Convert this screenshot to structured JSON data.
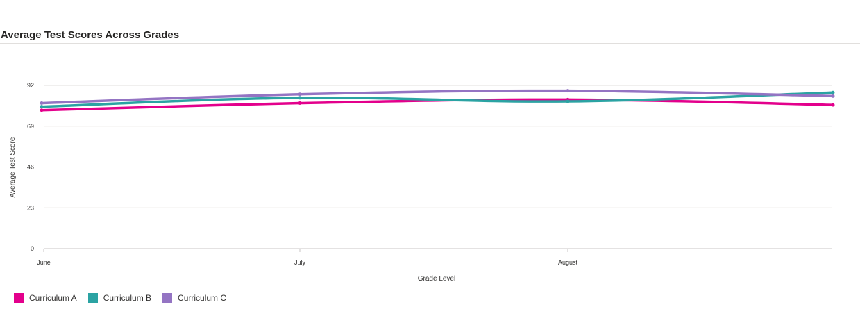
{
  "chart_data": {
    "type": "line",
    "title": "Average Test Scores Across Grades",
    "xlabel": "Grade Level",
    "ylabel": "Average Test Score",
    "categories": [
      "June",
      "July",
      "August",
      ""
    ],
    "x_tick_labels": [
      "June",
      "July",
      "August"
    ],
    "y_ticks": [
      "0",
      "23",
      "46",
      "69",
      "92"
    ],
    "ylim": [
      0,
      92
    ],
    "grid": true,
    "legend_position": "bottom-left",
    "series": [
      {
        "name": "Curriculum A",
        "color": "#e3008c",
        "values": [
          78,
          82,
          84,
          81
        ]
      },
      {
        "name": "Curriculum B",
        "color": "#2ba3a3",
        "values": [
          80,
          85,
          83,
          88
        ]
      },
      {
        "name": "Curriculum C",
        "color": "#9474c3",
        "values": [
          82,
          87,
          89,
          86
        ]
      }
    ]
  }
}
